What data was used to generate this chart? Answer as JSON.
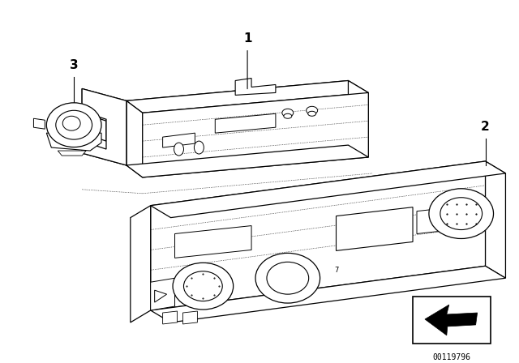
{
  "background_color": "#ffffff",
  "fig_width": 6.4,
  "fig_height": 4.48,
  "dpi": 100,
  "line_color": "#000000",
  "catalog_number": "00119796"
}
